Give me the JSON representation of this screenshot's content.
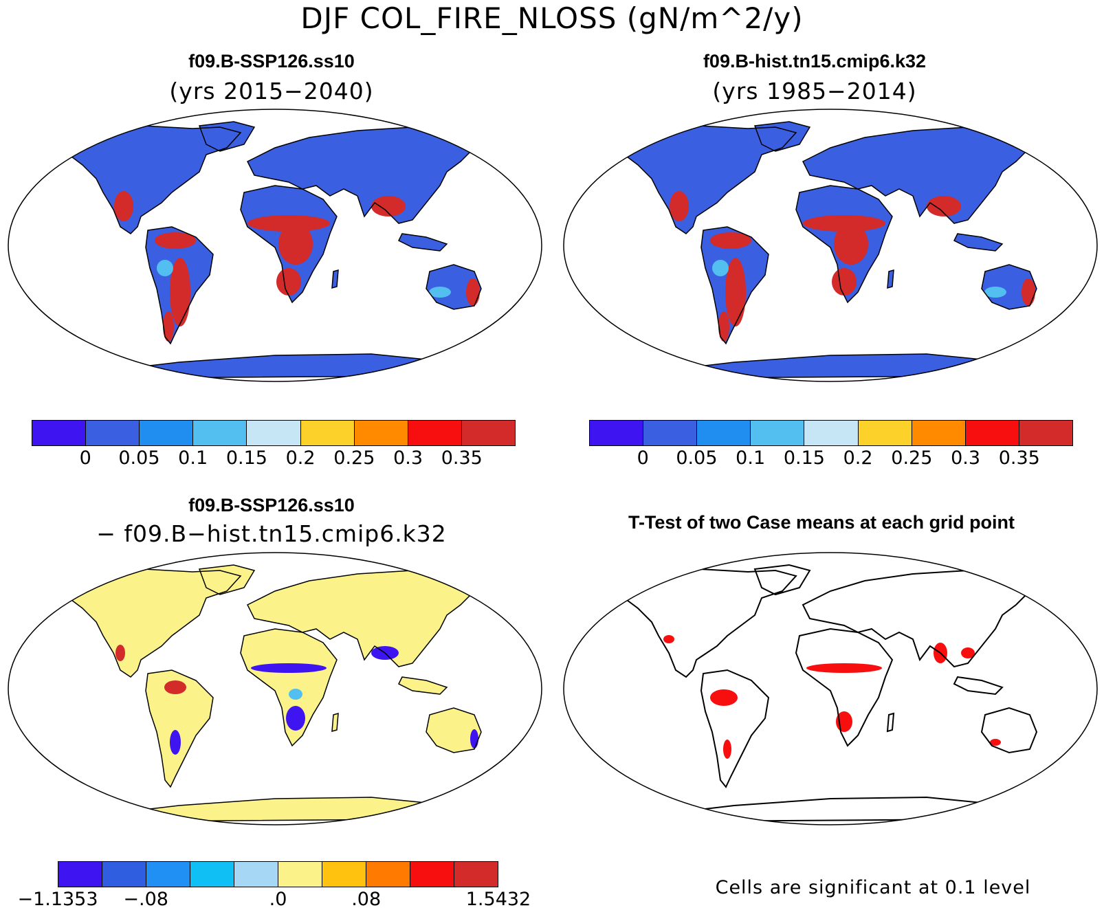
{
  "title": "DJF COL_FIRE_NLOSS (gN/m^2/y)",
  "panels": [
    {
      "title": "f09.B-SSP126.ss10",
      "subtitle": "(yrs 2015−2040)",
      "colorbar": {
        "colors": [
          "#3e15f0",
          "#3a5fe0",
          "#1f8ef0",
          "#52bff0",
          "#c6e5f5",
          "#fcd12a",
          "#ff8a00",
          "#f70f0f",
          "#d32a2a"
        ],
        "labels": [
          "0",
          "0.05",
          "0.1",
          "0.15",
          "0.2",
          "0.25",
          "0.3",
          "0.35"
        ]
      }
    },
    {
      "title": "f09.B-hist.tn15.cmip6.k32",
      "subtitle": "(yrs 1985−2014)",
      "colorbar": {
        "colors": [
          "#3e15f0",
          "#3a5fe0",
          "#1f8ef0",
          "#52bff0",
          "#c6e5f5",
          "#fcd12a",
          "#ff8a00",
          "#f70f0f",
          "#d32a2a"
        ],
        "labels": [
          "0",
          "0.05",
          "0.1",
          "0.15",
          "0.2",
          "0.25",
          "0.3",
          "0.35"
        ]
      }
    },
    {
      "title": "f09.B-SSP126.ss10",
      "subtitle": "− f09.B−hist.tn15.cmip6.k32",
      "colorbar": {
        "colors": [
          "#3e15f0",
          "#2f5fe0",
          "#2090f5",
          "#10c0f5",
          "#a6d8f5",
          "#fbf289",
          "#ffc20e",
          "#ff7a00",
          "#f70f0f",
          "#d32a2a"
        ],
        "labels": [
          "−1.1353",
          "−.08",
          ".0",
          ".08",
          "1.5432"
        ]
      }
    },
    {
      "title": "T-Test of two Case means at each grid point",
      "footnote": "Cells are significant at 0.1 level"
    }
  ],
  "map_colors": {
    "ocean": "#ffffff",
    "land_low": "#3a5fe0",
    "fire_high": "#d32a2a",
    "fire_mid": "#52bff0",
    "diff_base": "#fbf289",
    "diff_neg": "#3e15f0",
    "diff_pos": "#d32a2a",
    "signif": "#f70f0f",
    "coast": "#000000"
  }
}
